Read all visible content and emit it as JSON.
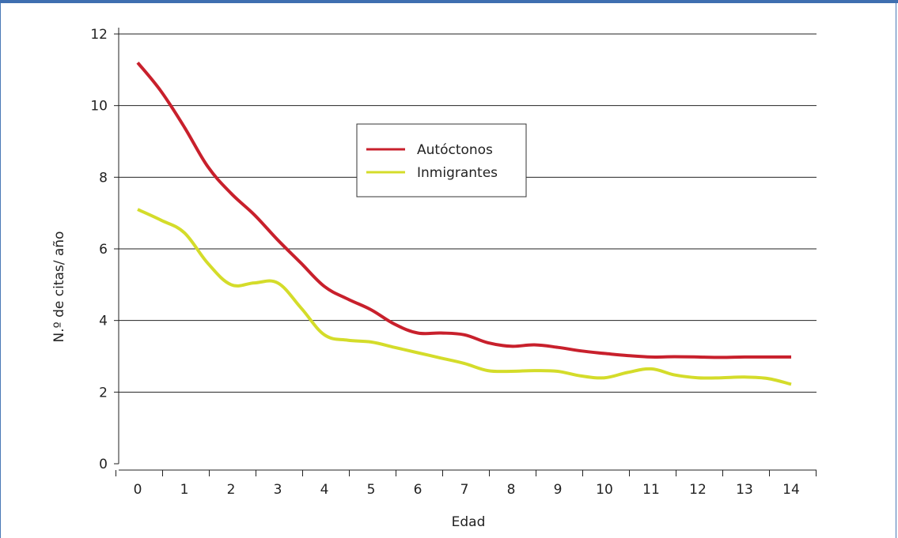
{
  "chart_data": {
    "type": "line",
    "xlabel": "Edad",
    "ylabel": "N.º de citas/ año",
    "x": [
      0,
      0.5,
      1,
      1.5,
      2,
      2.5,
      3,
      3.5,
      4,
      4.5,
      5,
      5.5,
      6,
      6.5,
      7,
      7.5,
      8,
      8.5,
      9,
      9.5,
      10,
      10.5,
      11,
      11.5,
      12,
      12.5,
      13,
      13.5,
      14
    ],
    "x_ticks": [
      "0",
      "1",
      "2",
      "3",
      "4",
      "5",
      "6",
      "7",
      "8",
      "9",
      "10",
      "11",
      "12",
      "13",
      "14"
    ],
    "y_ticks": [
      "0",
      "2",
      "4",
      "6",
      "8",
      "10",
      "12"
    ],
    "xlim": [
      -0.3,
      14.3
    ],
    "ylim": [
      0,
      12
    ],
    "grid": true,
    "legend_position": "center-top",
    "series": [
      {
        "name": "Autóctonos",
        "color": "#c8202c",
        "values": [
          11.2,
          10.4,
          9.4,
          8.3,
          7.55,
          6.95,
          6.25,
          5.6,
          4.95,
          4.6,
          4.3,
          3.9,
          3.65,
          3.65,
          3.6,
          3.38,
          3.28,
          3.32,
          3.25,
          3.15,
          3.08,
          3.02,
          2.98,
          2.99,
          2.98,
          2.97,
          2.98,
          2.98,
          2.98
        ]
      },
      {
        "name": "Inmigrantes",
        "color": "#d4dc2a",
        "values": [
          7.1,
          6.8,
          6.45,
          5.6,
          5.0,
          5.05,
          5.05,
          4.35,
          3.6,
          3.45,
          3.4,
          3.25,
          3.1,
          2.95,
          2.8,
          2.6,
          2.58,
          2.6,
          2.58,
          2.45,
          2.4,
          2.55,
          2.65,
          2.48,
          2.4,
          2.4,
          2.42,
          2.38,
          2.22
        ]
      }
    ]
  }
}
